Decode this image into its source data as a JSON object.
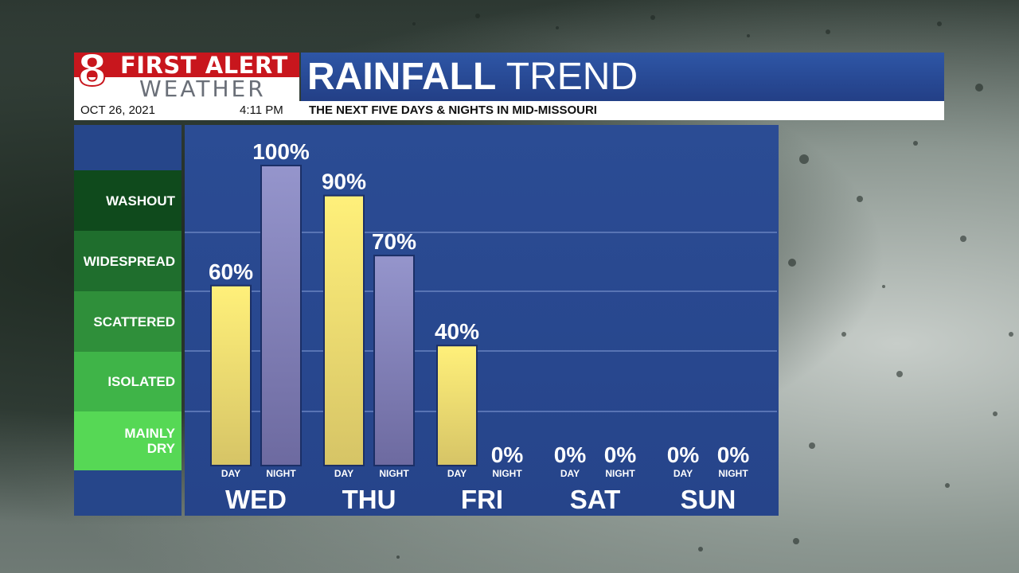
{
  "logo": {
    "number": "8",
    "line1": "FIRST ALERT",
    "line2": "WEATHER"
  },
  "header": {
    "title_bold": "RAINFALL",
    "title_light": "TREND",
    "date": "OCT 26, 2021",
    "time": "4:11 PM",
    "subtitle": "THE NEXT FIVE DAYS & NIGHTS IN MID-MISSOURI"
  },
  "legend": {
    "items": [
      {
        "label": "WASHOUT",
        "color": "#0f4a1c"
      },
      {
        "label": "WIDESPREAD",
        "color": "#1f6e2d"
      },
      {
        "label": "SCATTERED",
        "color": "#2f8f3a"
      },
      {
        "label": "ISOLATED",
        "color": "#3fb448"
      },
      {
        "label": "MAINLY DRY",
        "color": "#56d855"
      }
    ]
  },
  "colors": {
    "day_bar_top": "#fff07a",
    "day_bar_bottom": "#d6c466",
    "night_bar_top": "#9595cc",
    "night_bar_bottom": "#6d6aa0",
    "panel": "#26448a"
  },
  "chart_data": {
    "type": "bar",
    "title": "RAINFALL TREND",
    "ylim": [
      0,
      100
    ],
    "days": [
      "WED",
      "THU",
      "FRI",
      "SAT",
      "SUN"
    ],
    "periods": [
      "DAY",
      "NIGHT"
    ],
    "series": [
      {
        "name": "DAY",
        "values": [
          60,
          90,
          40,
          0,
          0
        ]
      },
      {
        "name": "NIGHT",
        "values": [
          100,
          70,
          0,
          0,
          0
        ]
      }
    ],
    "value_suffix": "%",
    "grid": true
  }
}
